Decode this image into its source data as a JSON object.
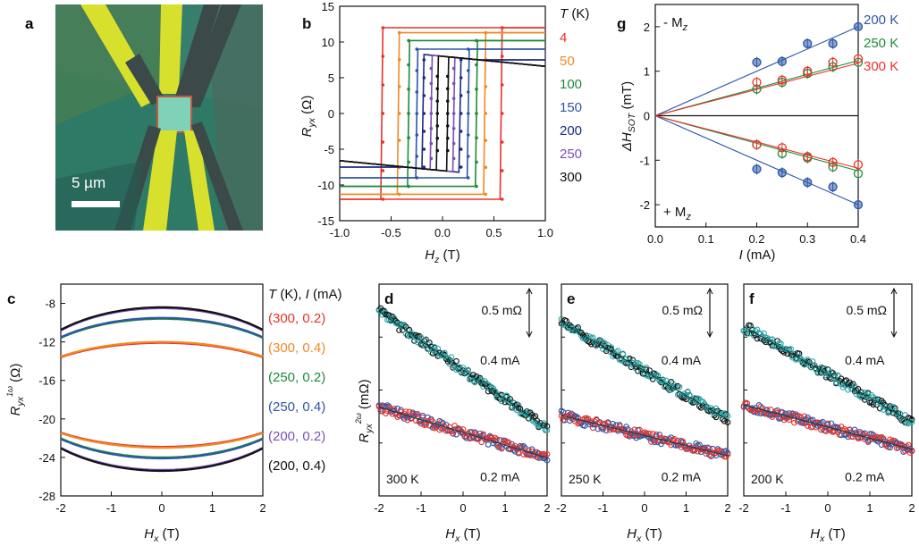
{
  "panel_labels": {
    "a": "a",
    "b": "b",
    "c": "c",
    "d": "d",
    "e": "e",
    "f": "f",
    "g": "g"
  },
  "micrograph": {
    "scale_label": "5 µm"
  },
  "chart_data": [
    {
      "id": "b",
      "type": "line",
      "xlabel_main": "H",
      "xlabel_sub": "z",
      "xlabel_unit": " (T)",
      "ylabel_main": "R",
      "ylabel_sub": "yx",
      "ylabel_unit": " (Ω)",
      "xlim": [
        -1,
        1
      ],
      "ylim": [
        -15,
        15
      ],
      "xticks": [
        "-1.0",
        "-0.5",
        "0.0",
        "0.5",
        "1.0"
      ],
      "yticks": [
        "-15",
        "-10",
        "-5",
        "0",
        "5",
        "10",
        "15"
      ],
      "legend_title": "T (K)",
      "series": [
        {
          "name": "4",
          "color": "#e8332a",
          "sat": 12.0,
          "hc": 0.58
        },
        {
          "name": "50",
          "color": "#f08a24",
          "sat": 11.3,
          "hc": 0.42
        },
        {
          "name": "100",
          "color": "#1e8a3a",
          "sat": 10.2,
          "hc": 0.33
        },
        {
          "name": "150",
          "color": "#2c56a8",
          "sat": 9.0,
          "hc": 0.25
        },
        {
          "name": "200",
          "color": "#1c2a80",
          "sat": 7.5,
          "hc": 0.18
        },
        {
          "name": "250",
          "color": "#7a4fb8",
          "sat": 6.3,
          "hc": 0.11
        },
        {
          "name": "300",
          "color": "#111111",
          "sat": 5.2,
          "hc": 0.05
        }
      ],
      "high_field": {
        "slope": -1.4,
        "value_at_1T": 6.6
      }
    },
    {
      "id": "c",
      "type": "line",
      "xlabel_main": "H",
      "xlabel_sub": "x",
      "xlabel_unit": " (T)",
      "ylabel_main": "R",
      "ylabel_sub": "yx",
      "ylabel_sup": "1ω",
      "ylabel_unit": " (Ω)",
      "xlim": [
        -2,
        2
      ],
      "ylim": [
        -28,
        -6
      ],
      "xticks": [
        "-2",
        "-1",
        "0",
        "1",
        "2"
      ],
      "yticks": [
        "-8",
        "-12",
        "-16",
        "-20",
        "-24",
        "-28"
      ],
      "legend_title": "T (K), I (mA)",
      "series": [
        {
          "name": "(300, 0.2)",
          "color": "#e8332a",
          "center": -17.5,
          "half": 5.4
        },
        {
          "name": "(300, 0.4)",
          "color": "#f08a24",
          "center": -17.5,
          "half": 5.5
        },
        {
          "name": "(250, 0.2)",
          "color": "#1e8a3a",
          "center": -16.8,
          "half": 7.2
        },
        {
          "name": "(250, 0.4)",
          "color": "#2c56a8",
          "center": -16.8,
          "half": 7.3
        },
        {
          "name": "(200, 0.2)",
          "color": "#7a4fb8",
          "center": -16.9,
          "half": 8.4
        },
        {
          "name": "(200, 0.4)",
          "color": "#111111",
          "center": -16.9,
          "half": 8.5
        }
      ]
    },
    {
      "id": "d",
      "type": "scatter",
      "xlabel_main": "H",
      "xlabel_sub": "x",
      "xlabel_unit": " (T)",
      "ylabel_main": "R",
      "ylabel_sub": "yx",
      "ylabel_sup": "2ω",
      "ylabel_unit": " (mΩ)",
      "xlim": [
        -2,
        2
      ],
      "xticks": [
        "-2",
        "-1",
        "0",
        "1",
        "2"
      ],
      "scalebar_label": "0.5 mΩ",
      "temp_label": "300 K",
      "curve_labels": {
        "high": "0.4 mA",
        "low": "0.2 mA"
      },
      "lines": [
        {
          "current": "0.4 mA",
          "y_start": 0.87,
          "y_end": 0.32,
          "color": "#2ea9a9",
          "edge": "#111111"
        },
        {
          "current": "0.2 mA",
          "y_start": 0.42,
          "y_end": 0.18,
          "color": "#e8332a",
          "edge": "#2c56a8"
        }
      ]
    },
    {
      "id": "e",
      "type": "scatter",
      "xlabel_main": "H",
      "xlabel_sub": "x",
      "xlabel_unit": " (T)",
      "xlim": [
        -2,
        2
      ],
      "xticks": [
        "-2",
        "-1",
        "0",
        "1",
        "2"
      ],
      "scalebar_label": "0.5 mΩ",
      "temp_label": "250 K",
      "curve_labels": {
        "high": "0.4 mA",
        "low": "0.2 mA"
      },
      "lines": [
        {
          "current": "0.4 mA",
          "y_start": 0.82,
          "y_end": 0.36,
          "color": "#2ea9a9",
          "edge": "#111111"
        },
        {
          "current": "0.2 mA",
          "y_start": 0.38,
          "y_end": 0.19,
          "color": "#e8332a",
          "edge": "#2c56a8"
        }
      ]
    },
    {
      "id": "f",
      "type": "scatter",
      "xlabel_main": "H",
      "xlabel_sub": "x",
      "xlabel_unit": " (T)",
      "xlim": [
        -2,
        2
      ],
      "xticks": [
        "-2",
        "-1",
        "0",
        "1",
        "2"
      ],
      "scalebar_label": "0.5 mΩ",
      "temp_label": "200 K",
      "curve_labels": {
        "high": "0.4 mA",
        "low": "0.2 mA"
      },
      "lines": [
        {
          "current": "0.4 mA",
          "y_start": 0.8,
          "y_end": 0.35,
          "color": "#2ea9a9",
          "edge": "#111111"
        },
        {
          "current": "0.2 mA",
          "y_start": 0.43,
          "y_end": 0.22,
          "color": "#e8332a",
          "edge": "#2c56a8"
        }
      ]
    },
    {
      "id": "g",
      "type": "scatter",
      "xlabel_main": "I",
      "xlabel_unit": " (mA)",
      "ylabel_main": "ΔH",
      "ylabel_sub": "SOT",
      "ylabel_unit": " (mT)",
      "xlim": [
        0,
        0.4
      ],
      "ylim": [
        -2.5,
        2.5
      ],
      "xticks": [
        "0.0",
        "0.1",
        "0.2",
        "0.3",
        "0.4"
      ],
      "yticks": [
        "2",
        "1",
        "0",
        "-1",
        "-2"
      ],
      "annot_top": "- M",
      "annot_bottom": "+ M",
      "annot_sub": "z",
      "x": [
        0.2,
        0.25,
        0.3,
        0.35,
        0.4
      ],
      "series": [
        {
          "name": "200 K",
          "color": "#2c56a8",
          "up": [
            1.2,
            1.22,
            1.62,
            1.62,
            2.0
          ],
          "down": [
            -1.2,
            -1.28,
            -1.5,
            -1.6,
            -2.0
          ],
          "slope": 5.0
        },
        {
          "name": "250 K",
          "color": "#1e8a3a",
          "up": [
            0.6,
            0.75,
            0.95,
            1.1,
            1.2
          ],
          "down": [
            -0.65,
            -0.85,
            -0.95,
            -1.15,
            -1.3
          ],
          "slope": 3.1
        },
        {
          "name": "300 K",
          "color": "#e8332a",
          "up": [
            0.75,
            0.8,
            1.0,
            1.2,
            1.28
          ],
          "down": [
            -0.65,
            -0.72,
            -0.92,
            -1.05,
            -1.1
          ],
          "slope": 2.95
        }
      ]
    }
  ]
}
